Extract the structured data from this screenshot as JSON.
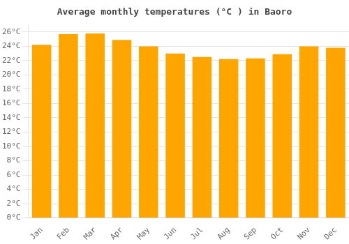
{
  "chart_data": {
    "type": "bar",
    "title": "Average monthly temperatures (°C ) in Baoro",
    "categories": [
      "Jan",
      "Feb",
      "Mar",
      "Apr",
      "May",
      "Jun",
      "Jul",
      "Aug",
      "Sep",
      "Oct",
      "Nov",
      "Dec"
    ],
    "values": [
      24.2,
      25.7,
      25.8,
      24.9,
      24.0,
      23.0,
      22.5,
      22.2,
      22.3,
      22.9,
      24.0,
      23.8
    ],
    "color": "#FFA500",
    "ylim": [
      0,
      27
    ],
    "yticks": [
      {
        "value": 0,
        "label": "0°C"
      },
      {
        "value": 2,
        "label": "2°C"
      },
      {
        "value": 4,
        "label": "4°C"
      },
      {
        "value": 6,
        "label": "6°C"
      },
      {
        "value": 8,
        "label": "8°C"
      },
      {
        "value": 10,
        "label": "10°C"
      },
      {
        "value": 12,
        "label": "12°C"
      },
      {
        "value": 14,
        "label": "14°C"
      },
      {
        "value": 16,
        "label": "16°C"
      },
      {
        "value": 18,
        "label": "18°C"
      },
      {
        "value": 20,
        "label": "20°C"
      },
      {
        "value": 22,
        "label": "22°C"
      },
      {
        "value": 24,
        "label": "24°C"
      },
      {
        "value": 26,
        "label": "26°C"
      }
    ],
    "grid": true
  }
}
